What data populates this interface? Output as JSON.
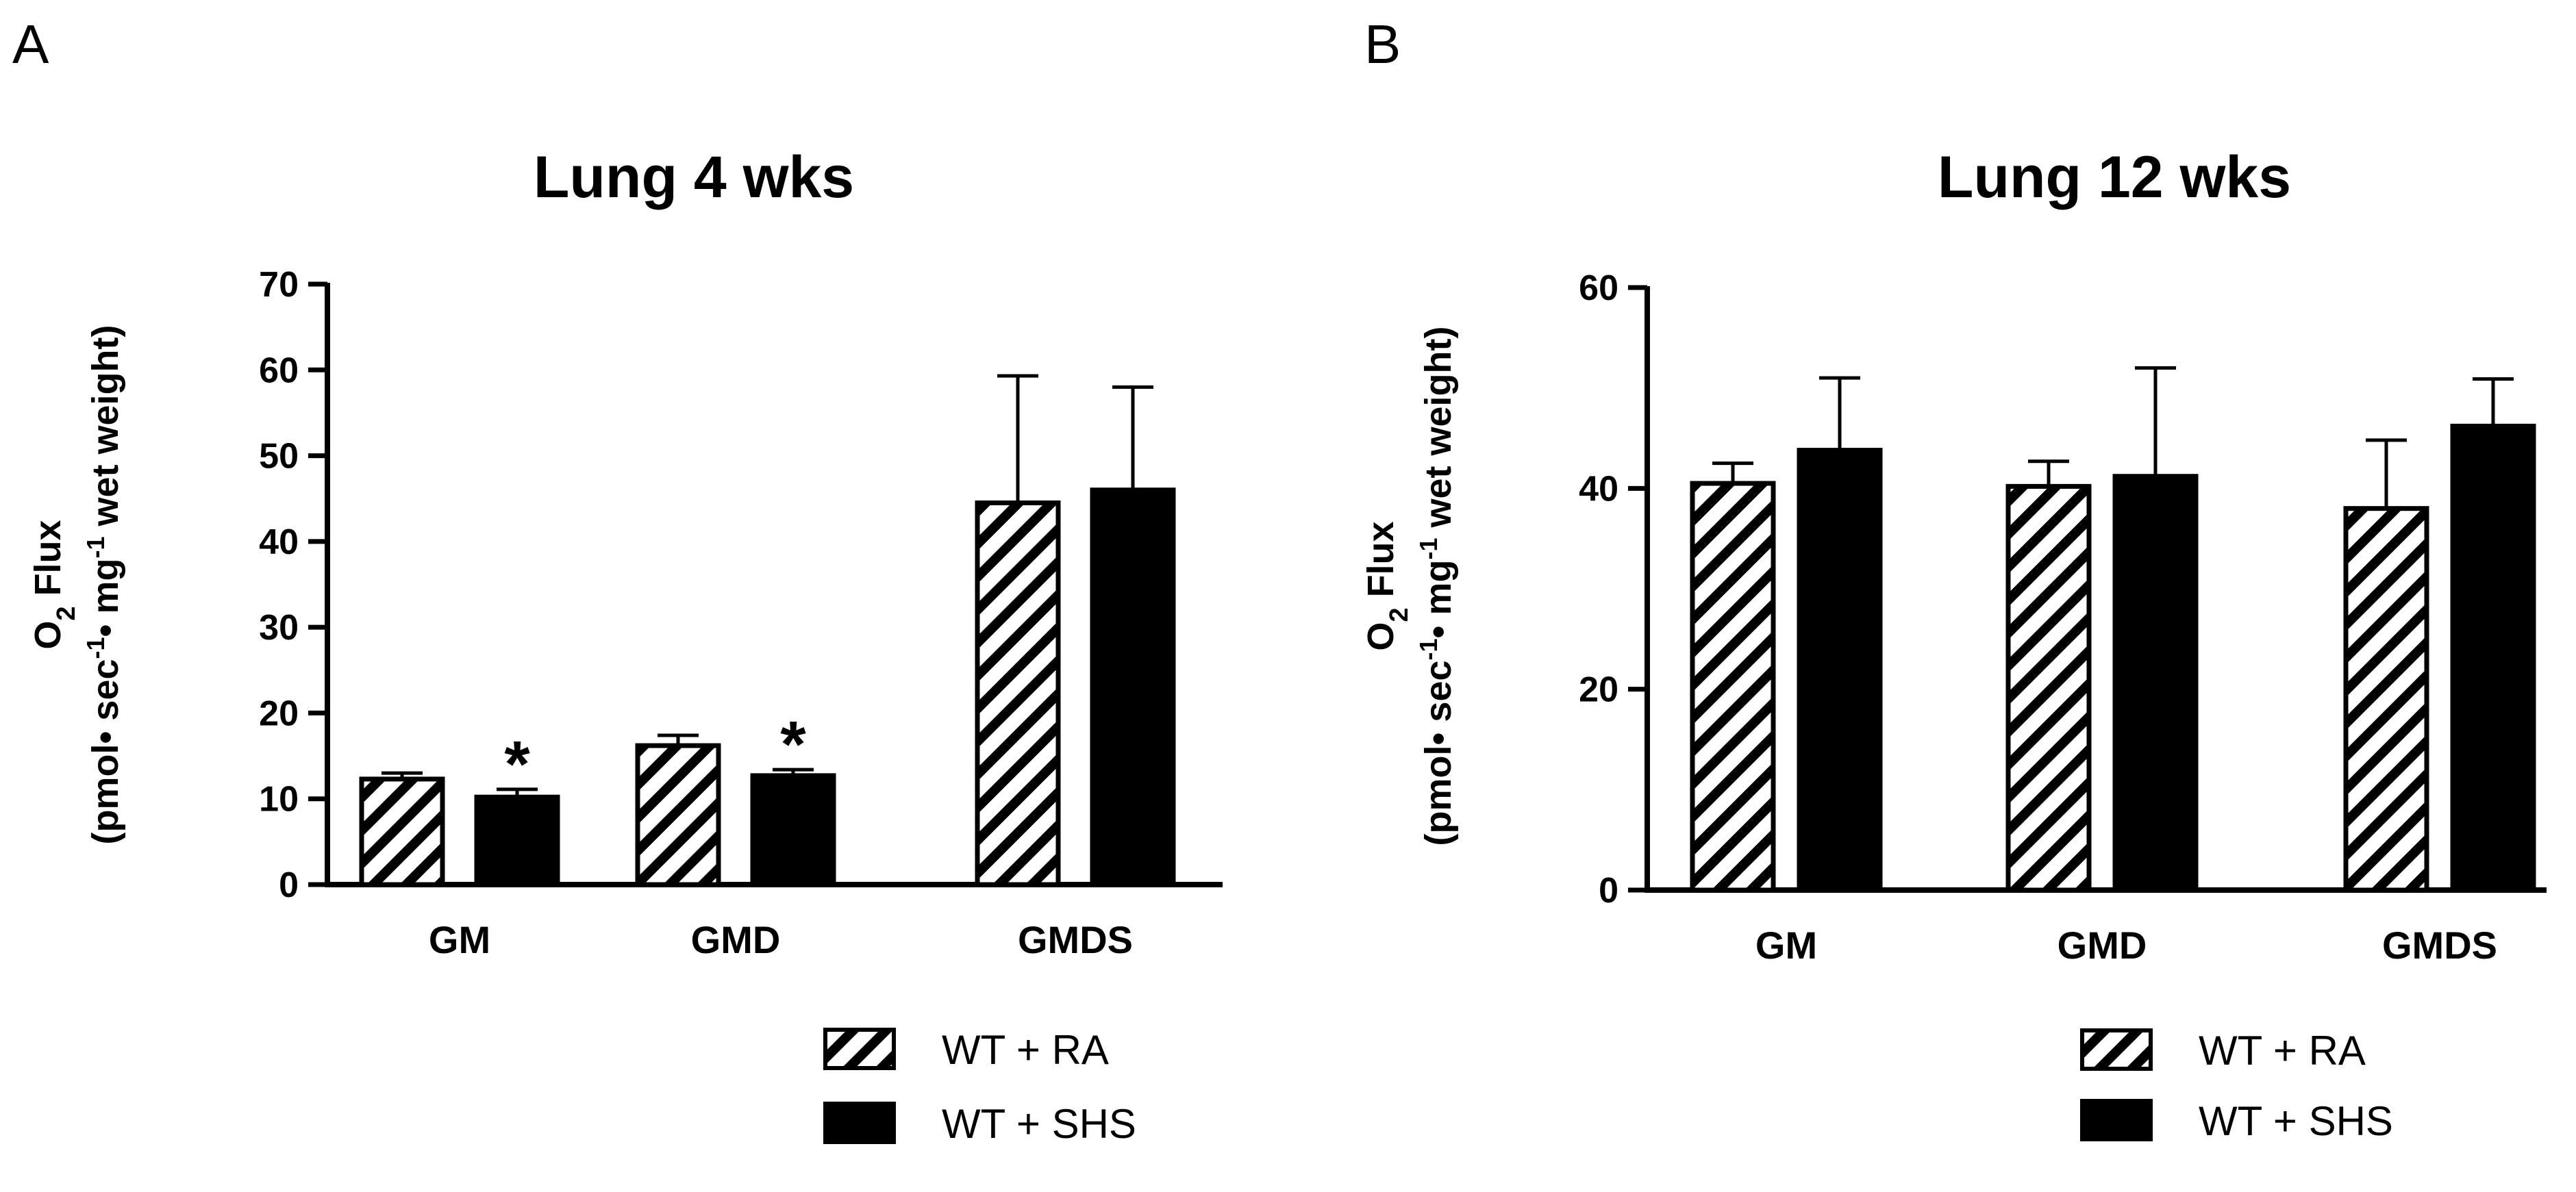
{
  "colors": {
    "series_ra_fill": "#ffffff",
    "series_ra_hatch": "#000000",
    "series_shs_fill": "#000000",
    "axis": "#000000"
  },
  "chart_data": [
    {
      "panel": "A",
      "type": "bar",
      "title": "Lung 4 wks",
      "ylabel_line1": "O2 Flux",
      "ylabel_line2": "(pmol• sec-1• mg-1 wet weight)",
      "xlabel": "",
      "ylim": [
        0,
        70
      ],
      "yticks": [
        0,
        10,
        20,
        30,
        40,
        50,
        60,
        70
      ],
      "categories": [
        "GM",
        "GMD",
        "GMDS"
      ],
      "series": [
        {
          "name": "WT + RA",
          "values": [
            12.3,
            16.2,
            44.5
          ],
          "errors": [
            0.7,
            1.2,
            14.8
          ]
        },
        {
          "name": "WT + SHS",
          "values": [
            10.2,
            12.7,
            46.0
          ],
          "errors": [
            0.9,
            0.7,
            12.0
          ]
        }
      ],
      "annotations": [
        {
          "category": "GM",
          "series": "WT + SHS",
          "text": "*"
        },
        {
          "category": "GMD",
          "series": "WT + SHS",
          "text": "*"
        }
      ],
      "legend": [
        "WT + RA",
        "WT + SHS"
      ],
      "legend_position": "bottom-center"
    },
    {
      "panel": "B",
      "type": "bar",
      "title": "Lung 12 wks",
      "ylabel_line1": "O2 Flux",
      "ylabel_line2": "(pmol• sec-1• mg-1 wet weight)",
      "xlabel": "",
      "ylim": [
        0,
        60
      ],
      "yticks": [
        0,
        20,
        40,
        60
      ],
      "categories": [
        "GM",
        "GMD",
        "GMDS"
      ],
      "series": [
        {
          "name": "WT + RA",
          "values": [
            40.5,
            40.2,
            38.0
          ],
          "errors": [
            2.0,
            2.5,
            6.8
          ]
        },
        {
          "name": "WT + SHS",
          "values": [
            43.8,
            41.2,
            46.2
          ],
          "errors": [
            7.2,
            10.8,
            4.7
          ]
        }
      ],
      "annotations": [],
      "legend": [
        "WT + RA",
        "WT + SHS"
      ],
      "legend_position": "bottom-center"
    }
  ]
}
